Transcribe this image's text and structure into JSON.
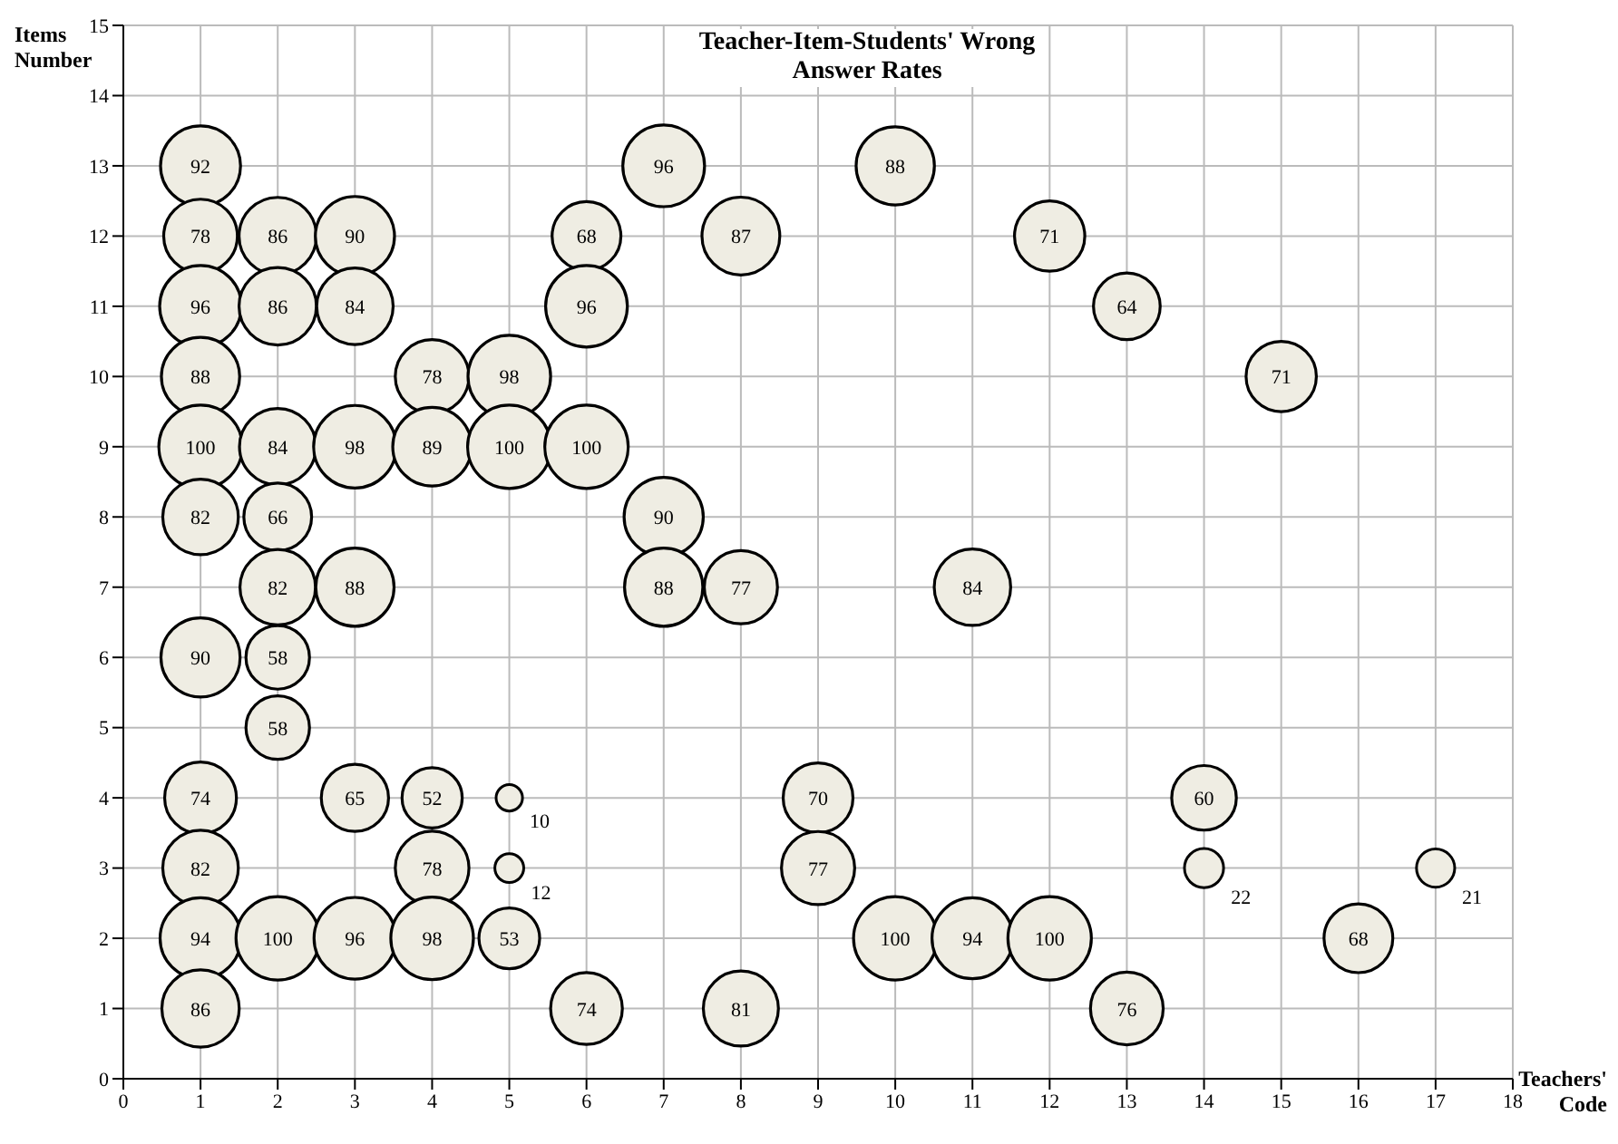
{
  "chart_data": {
    "type": "bubble",
    "title": "Teacher-Item-Students' Wrong Answer Rates",
    "xlabel": "Teachers' Code",
    "ylabel": "Items Number",
    "x": [
      1,
      7,
      10,
      1,
      2,
      3,
      6,
      8,
      12,
      1,
      2,
      3,
      6,
      13,
      1,
      4,
      5,
      15,
      1,
      2,
      3,
      4,
      5,
      6,
      1,
      2,
      7,
      2,
      3,
      7,
      8,
      11,
      1,
      2,
      2,
      1,
      3,
      4,
      5,
      9,
      14,
      1,
      4,
      5,
      9,
      14,
      17,
      1,
      2,
      3,
      4,
      5,
      10,
      11,
      12,
      16,
      1,
      6,
      8,
      13
    ],
    "values": [
      13,
      13,
      13,
      12,
      12,
      12,
      12,
      12,
      12,
      11,
      11,
      11,
      11,
      11,
      10,
      10,
      10,
      10,
      9,
      9,
      9,
      9,
      9,
      9,
      8,
      8,
      8,
      7,
      7,
      7,
      7,
      7,
      6,
      6,
      5,
      4,
      4,
      4,
      4,
      4,
      4,
      3,
      3,
      3,
      3,
      3,
      3,
      2,
      2,
      2,
      2,
      2,
      2,
      2,
      2,
      2,
      1,
      1,
      1,
      1
    ],
    "sizes": [
      0.92,
      0.96,
      0.88,
      0.78,
      0.86,
      0.9,
      0.68,
      0.87,
      0.71,
      0.96,
      0.86,
      0.84,
      0.96,
      0.64,
      0.88,
      0.78,
      0.98,
      0.71,
      1,
      0.84,
      0.98,
      0.89,
      1,
      1,
      0.82,
      0.66,
      0.9,
      0.82,
      0.88,
      0.88,
      0.77,
      0.84,
      0.9,
      0.58,
      0.58,
      0.74,
      0.65,
      0.52,
      0.1,
      0.7,
      0.6,
      0.82,
      0.78,
      0.12,
      0.77,
      0.22,
      0.21,
      0.94,
      1,
      0.96,
      0.98,
      0.53,
      1,
      0.94,
      1,
      0.68,
      0.86,
      0.74,
      0.81,
      0.76
    ],
    "annotations": [
      {
        "text": "92",
        "x": 1,
        "y": 13
      },
      {
        "text": "96",
        "x": 7,
        "y": 13
      },
      {
        "text": "88",
        "x": 10,
        "y": 13
      },
      {
        "text": "78",
        "x": 1,
        "y": 12
      },
      {
        "text": "86",
        "x": 2,
        "y": 12
      },
      {
        "text": "90",
        "x": 3,
        "y": 12
      },
      {
        "text": "68",
        "x": 6,
        "y": 12
      },
      {
        "text": "87",
        "x": 8,
        "y": 12
      },
      {
        "text": "71",
        "x": 12,
        "y": 12
      },
      {
        "text": "96",
        "x": 1,
        "y": 11
      },
      {
        "text": "86",
        "x": 2,
        "y": 11
      },
      {
        "text": "84",
        "x": 3,
        "y": 11
      },
      {
        "text": "96",
        "x": 6,
        "y": 11
      },
      {
        "text": "64",
        "x": 13,
        "y": 11
      },
      {
        "text": "88",
        "x": 1,
        "y": 10
      },
      {
        "text": "78",
        "x": 4,
        "y": 10
      },
      {
        "text": "98",
        "x": 5,
        "y": 10
      },
      {
        "text": "71",
        "x": 15,
        "y": 10
      },
      {
        "text": "100",
        "x": 1,
        "y": 9
      },
      {
        "text": "84",
        "x": 2,
        "y": 9
      },
      {
        "text": "98",
        "x": 3,
        "y": 9
      },
      {
        "text": "89",
        "x": 4,
        "y": 9
      },
      {
        "text": "100",
        "x": 5,
        "y": 9
      },
      {
        "text": "100",
        "x": 6,
        "y": 9
      },
      {
        "text": "82",
        "x": 1,
        "y": 8
      },
      {
        "text": "66",
        "x": 2,
        "y": 8
      },
      {
        "text": "90",
        "x": 7,
        "y": 8
      },
      {
        "text": "82",
        "x": 2,
        "y": 7
      },
      {
        "text": "88",
        "x": 3,
        "y": 7
      },
      {
        "text": "88",
        "x": 7,
        "y": 7
      },
      {
        "text": "77",
        "x": 8,
        "y": 7
      },
      {
        "text": "84",
        "x": 11,
        "y": 7
      },
      {
        "text": "90",
        "x": 1,
        "y": 6
      },
      {
        "text": "58",
        "x": 2,
        "y": 6
      },
      {
        "text": "58",
        "x": 2,
        "y": 5
      },
      {
        "text": "74",
        "x": 1,
        "y": 4
      },
      {
        "text": "65",
        "x": 3,
        "y": 4
      },
      {
        "text": "52",
        "x": 4,
        "y": 4
      },
      {
        "text": "10",
        "x": 5,
        "y": 4
      },
      {
        "text": "70",
        "x": 9,
        "y": 4
      },
      {
        "text": "60",
        "x": 14,
        "y": 4
      },
      {
        "text": "82",
        "x": 1,
        "y": 3
      },
      {
        "text": "78",
        "x": 4,
        "y": 3
      },
      {
        "text": "12",
        "x": 5,
        "y": 3
      },
      {
        "text": "77",
        "x": 9,
        "y": 3
      },
      {
        "text": "22",
        "x": 14,
        "y": 3
      },
      {
        "text": "21",
        "x": 17,
        "y": 3
      },
      {
        "text": "94",
        "x": 1,
        "y": 2
      },
      {
        "text": "100",
        "x": 2,
        "y": 2
      },
      {
        "text": "96",
        "x": 3,
        "y": 2
      },
      {
        "text": "98",
        "x": 4,
        "y": 2
      },
      {
        "text": "53",
        "x": 5,
        "y": 2
      },
      {
        "text": "100",
        "x": 10,
        "y": 2
      },
      {
        "text": "94",
        "x": 11,
        "y": 2
      },
      {
        "text": "100",
        "x": 12,
        "y": 2
      },
      {
        "text": "68",
        "x": 16,
        "y": 2
      },
      {
        "text": "86",
        "x": 1,
        "y": 1
      },
      {
        "text": "74",
        "x": 6,
        "y": 1
      },
      {
        "text": "81",
        "x": 8,
        "y": 1
      },
      {
        "text": "76",
        "x": 13,
        "y": 1
      }
    ],
    "color": "#efede3",
    "xlim": [
      0,
      18
    ],
    "xticks": [
      0,
      1,
      2,
      3,
      4,
      5,
      6,
      7,
      8,
      9,
      10,
      11,
      12,
      13,
      14,
      15,
      16,
      17,
      18
    ],
    "ylim": [
      0,
      15
    ],
    "yticks": [
      0,
      1,
      2,
      3,
      4,
      5,
      6,
      7,
      8,
      9,
      10,
      11,
      12,
      13,
      14,
      15
    ],
    "grid": true,
    "marker": "circle"
  }
}
